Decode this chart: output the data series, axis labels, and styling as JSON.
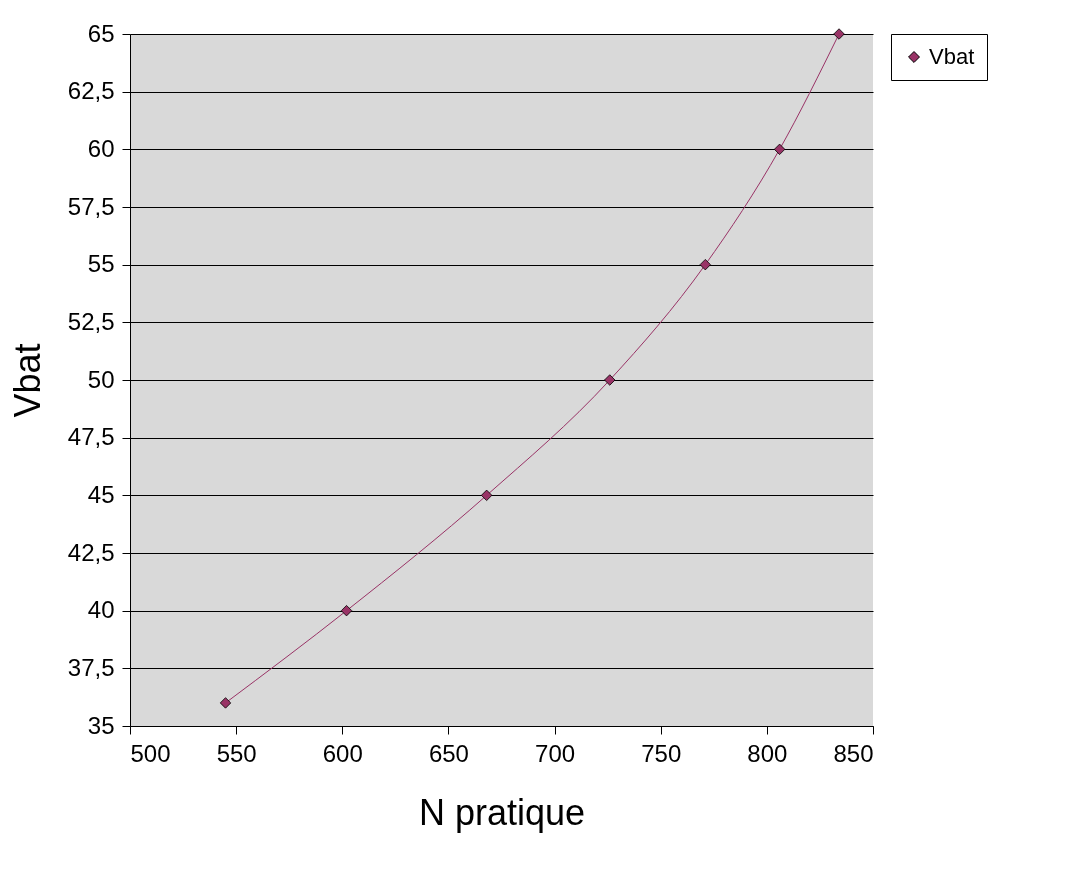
{
  "chart_data": {
    "type": "line",
    "xlabel": "N pratique",
    "ylabel": "Vbat",
    "x": [
      545,
      602,
      668,
      726,
      771,
      806,
      834
    ],
    "series": [
      {
        "name": "Vbat",
        "color": "#993366",
        "values": [
          36,
          40,
          45,
          50,
          55,
          60,
          65
        ]
      }
    ],
    "xlim": [
      500,
      850
    ],
    "xticks": [
      500,
      550,
      600,
      650,
      700,
      750,
      800,
      850
    ],
    "ylim": [
      35,
      65
    ],
    "yticks": [
      35,
      {
        "value": 37.5,
        "label": "37,5"
      },
      40,
      {
        "value": 42.5,
        "label": "42,5"
      },
      45,
      {
        "value": 47.5,
        "label": "47,5"
      },
      50,
      {
        "value": 52.5,
        "label": "52,5"
      },
      55,
      {
        "value": 57.5,
        "label": "57,5"
      },
      60,
      {
        "value": 62.5,
        "label": "62,5"
      },
      65
    ],
    "grid": "y",
    "legend": "right",
    "marker": "diamond",
    "line_style": "solid"
  }
}
